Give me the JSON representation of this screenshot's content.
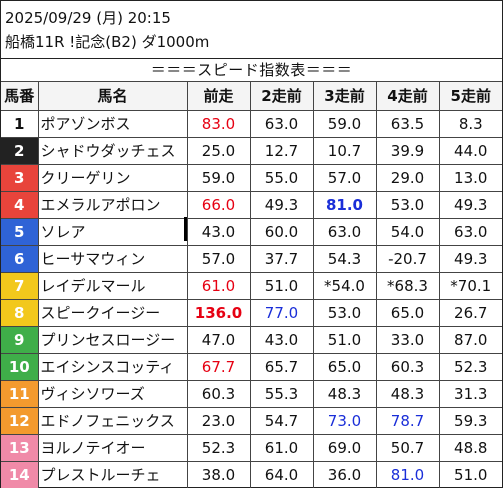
{
  "header": {
    "datetime": "2025/09/29 (月) 20:15",
    "race": "船橋11R !記念(B2) ダ1000m"
  },
  "banner": "＝＝＝スピード指数表＝＝＝",
  "columns": [
    "馬番",
    "馬名",
    "前走",
    "2走前",
    "3走前",
    "4走前",
    "5走前"
  ],
  "rows": [
    {
      "no": "1",
      "no_bg": "#ffffff",
      "no_fg": "#111111",
      "name": "ポアゾンボス",
      "vals": [
        {
          "v": "83.0",
          "c": "red"
        },
        {
          "v": "63.0"
        },
        {
          "v": "59.0"
        },
        {
          "v": "63.5"
        },
        {
          "v": "8.3"
        }
      ]
    },
    {
      "no": "2",
      "no_bg": "#222222",
      "no_fg": "#ffffff",
      "name": "シャドウダッチェス",
      "vals": [
        {
          "v": "25.0"
        },
        {
          "v": "12.7"
        },
        {
          "v": "10.7"
        },
        {
          "v": "39.9"
        },
        {
          "v": "44.0"
        }
      ]
    },
    {
      "no": "3",
      "no_bg": "#e8443b",
      "no_fg": "#ffffff",
      "name": "クリーゲリン",
      "vals": [
        {
          "v": "59.0"
        },
        {
          "v": "55.0"
        },
        {
          "v": "57.0"
        },
        {
          "v": "29.0"
        },
        {
          "v": "13.0"
        }
      ]
    },
    {
      "no": "4",
      "no_bg": "#e8443b",
      "no_fg": "#ffffff",
      "name": "エメラルアポロン",
      "vals": [
        {
          "v": "66.0",
          "c": "red"
        },
        {
          "v": "49.3"
        },
        {
          "v": "81.0",
          "c": "blue",
          "b": true
        },
        {
          "v": "53.0"
        },
        {
          "v": "49.3"
        }
      ]
    },
    {
      "no": "5",
      "no_bg": "#2f63d6",
      "no_fg": "#ffffff",
      "name": "ソレア",
      "vals": [
        {
          "v": "43.0"
        },
        {
          "v": "60.0"
        },
        {
          "v": "63.0"
        },
        {
          "v": "54.0"
        },
        {
          "v": "63.0"
        }
      ]
    },
    {
      "no": "6",
      "no_bg": "#2f63d6",
      "no_fg": "#ffffff",
      "name": "ヒーサマウィン",
      "vals": [
        {
          "v": "57.0"
        },
        {
          "v": "37.7"
        },
        {
          "v": "54.3"
        },
        {
          "v": "-20.7"
        },
        {
          "v": "49.3"
        }
      ]
    },
    {
      "no": "7",
      "no_bg": "#f2c81c",
      "no_fg": "#ffffff",
      "name": "レイデルマール",
      "vals": [
        {
          "v": "61.0",
          "c": "red"
        },
        {
          "v": "51.0"
        },
        {
          "v": "*54.0"
        },
        {
          "v": "*68.3"
        },
        {
          "v": "*70.1"
        }
      ]
    },
    {
      "no": "8",
      "no_bg": "#f2c81c",
      "no_fg": "#ffffff",
      "name": "スピークイージー",
      "vals": [
        {
          "v": "136.0",
          "c": "red",
          "b": true
        },
        {
          "v": "77.0",
          "c": "blue"
        },
        {
          "v": "53.0"
        },
        {
          "v": "65.0"
        },
        {
          "v": "26.7"
        }
      ]
    },
    {
      "no": "9",
      "no_bg": "#3fae49",
      "no_fg": "#ffffff",
      "name": "プリンセスロージー",
      "vals": [
        {
          "v": "47.0"
        },
        {
          "v": "43.0"
        },
        {
          "v": "51.0"
        },
        {
          "v": "33.0"
        },
        {
          "v": "87.0"
        }
      ]
    },
    {
      "no": "10",
      "no_bg": "#3fae49",
      "no_fg": "#ffffff",
      "name": "エイシンスコッティ",
      "vals": [
        {
          "v": "67.7",
          "c": "red"
        },
        {
          "v": "65.7"
        },
        {
          "v": "65.0"
        },
        {
          "v": "60.3"
        },
        {
          "v": "52.3"
        }
      ]
    },
    {
      "no": "11",
      "no_bg": "#f39a2e",
      "no_fg": "#ffffff",
      "name": "ヴィシソワーズ",
      "vals": [
        {
          "v": "60.3"
        },
        {
          "v": "55.3"
        },
        {
          "v": "48.3"
        },
        {
          "v": "48.3"
        },
        {
          "v": "31.3"
        }
      ]
    },
    {
      "no": "12",
      "no_bg": "#f39a2e",
      "no_fg": "#ffffff",
      "name": "エドノフェニックス",
      "vals": [
        {
          "v": "23.0"
        },
        {
          "v": "54.7"
        },
        {
          "v": "73.0",
          "c": "blue"
        },
        {
          "v": "78.7",
          "c": "blue"
        },
        {
          "v": "59.3"
        }
      ]
    },
    {
      "no": "13",
      "no_bg": "#f08aa8",
      "no_fg": "#ffffff",
      "name": "ヨルノテイオー",
      "vals": [
        {
          "v": "52.3"
        },
        {
          "v": "61.0"
        },
        {
          "v": "69.0"
        },
        {
          "v": "50.7"
        },
        {
          "v": "48.8"
        }
      ]
    },
    {
      "no": "14",
      "no_bg": "#f08aa8",
      "no_fg": "#ffffff",
      "name": "プレストルーチェ",
      "vals": [
        {
          "v": "38.0"
        },
        {
          "v": "64.0"
        },
        {
          "v": "36.0"
        },
        {
          "v": "81.0",
          "c": "blue"
        },
        {
          "v": "51.0"
        }
      ]
    }
  ]
}
